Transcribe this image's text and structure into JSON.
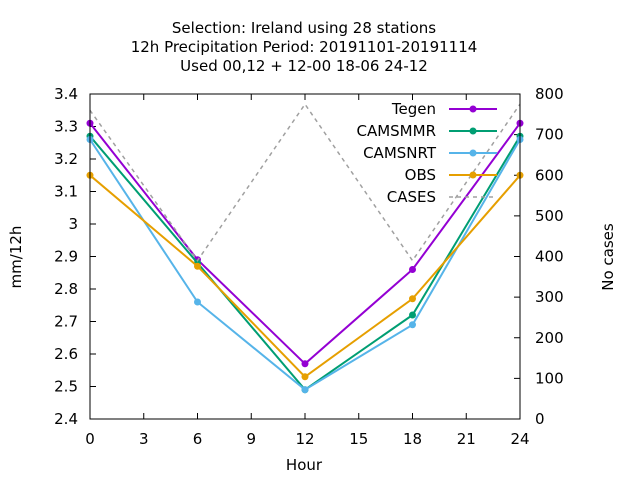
{
  "chart_data": {
    "type": "line",
    "title_lines": [
      "Selection: Ireland using    28 stations",
      "12h Precipitation    Period: 20191101-20191114",
      "Used  00,12  + 12-00 18-06 24-12"
    ],
    "xlabel": "Hour",
    "ylabel": "mm/12h",
    "y2label": "No cases",
    "xlim": [
      0,
      24
    ],
    "ylim": [
      2.4,
      3.4
    ],
    "y2lim": [
      0,
      800
    ],
    "xticks": [
      "0",
      "3",
      "6",
      "9",
      "12",
      "15",
      "18",
      "21",
      "24"
    ],
    "yticks": [
      "2.4",
      "2.5",
      "2.6",
      "2.7",
      "2.8",
      "2.9",
      "3",
      "3.1",
      "3.2",
      "3.3",
      "3.4"
    ],
    "y2ticks": [
      "0",
      "100",
      "200",
      "300",
      "400",
      "500",
      "600",
      "700",
      "800"
    ],
    "x": [
      0,
      6,
      12,
      18,
      24
    ],
    "legend_position": "top-right",
    "series": [
      {
        "name": "Tegen",
        "color": "#9400d3",
        "axis": "y",
        "style": "solid",
        "values": [
          3.31,
          2.89,
          2.57,
          2.86,
          3.31
        ]
      },
      {
        "name": "CAMSMMR",
        "color": "#009e73",
        "axis": "y",
        "style": "solid",
        "values": [
          3.27,
          2.88,
          2.49,
          2.72,
          3.27
        ]
      },
      {
        "name": "CAMSNRT",
        "color": "#56b4e9",
        "axis": "y",
        "style": "solid",
        "values": [
          3.26,
          2.76,
          2.49,
          2.69,
          3.26
        ]
      },
      {
        "name": "OBS",
        "color": "#e69f00",
        "axis": "y",
        "style": "solid",
        "values": [
          3.15,
          2.87,
          2.53,
          2.77,
          3.15
        ]
      },
      {
        "name": "CASES",
        "color": "#a0a0a0",
        "axis": "y2",
        "style": "dashed",
        "values": [
          760,
          390,
          775,
          390,
          775
        ]
      }
    ]
  }
}
